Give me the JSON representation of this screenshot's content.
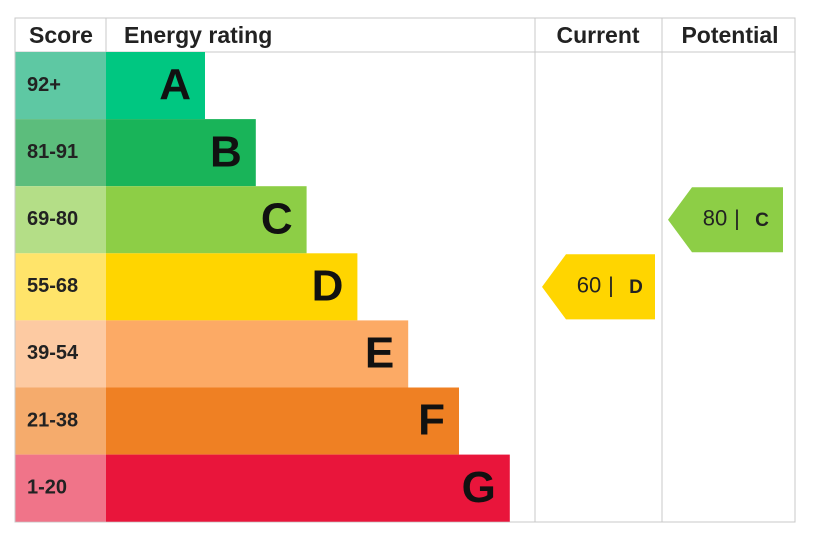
{
  "header": {
    "score": "Score",
    "energy_rating": "Energy rating",
    "current": "Current",
    "potential": "Potential"
  },
  "bands": [
    {
      "score": "92+",
      "letter": "A",
      "color": "#00c781",
      "score_color": "#5ec8a3"
    },
    {
      "score": "81-91",
      "letter": "B",
      "color": "#19b459",
      "score_color": "#5cbd7c"
    },
    {
      "score": "69-80",
      "letter": "C",
      "color": "#8dce46",
      "score_color": "#b4de87"
    },
    {
      "score": "55-68",
      "letter": "D",
      "color": "#ffd500",
      "score_color": "#ffe46a"
    },
    {
      "score": "39-54",
      "letter": "E",
      "color": "#fcaa65",
      "score_color": "#fdcaa2"
    },
    {
      "score": "21-38",
      "letter": "F",
      "color": "#ef8023",
      "score_color": "#f5ab6c"
    },
    {
      "score": "1-20",
      "letter": "G",
      "color": "#e9153b",
      "score_color": "#f07489"
    }
  ],
  "current": {
    "value": 60,
    "separator": "|",
    "letter": "D"
  },
  "potential": {
    "value": 80,
    "separator": "|",
    "letter": "C"
  }
}
